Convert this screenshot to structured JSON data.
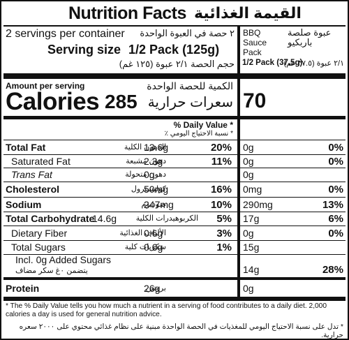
{
  "header": {
    "title_en": "Nutrition Facts",
    "title_ar": "القيمة الغذائية",
    "servings_en": "2 servings per container",
    "servings_ar": "٢ حصة في العبوة الواحدة",
    "serving_size_label": "Serving size",
    "serving_size_value": "1/2 Pack (125g)",
    "serving_size_ar": "حجم الحصة ٢/١ عبوة (١٢٥ غم)",
    "extra_col_title_en": "BBQ Sauce Pack",
    "extra_col_title_ar": "عبوة صلصة باربكيو",
    "extra_serving_en": "1/2 Pack (37.5g)",
    "extra_serving_ar": "٢/١ عبوة (٣٧.٥ غم)"
  },
  "calories": {
    "amount_label_en": "Amount per serving",
    "amount_label_ar": "الكمية للحصة الواحدة",
    "label_en": "Calories",
    "label_ar": "سعرات حرارية",
    "value": "285",
    "extra_value": "70"
  },
  "dv_header": {
    "en": "% Daily Value *",
    "ar": "* نسبة الاحتياج اليومي ٪"
  },
  "rows": [
    {
      "en": "Total Fat",
      "ar": "الدهون الكلية",
      "amount": "13.6g",
      "dv": "20%",
      "x_amount": "0g",
      "x_dv": "0%",
      "bold": true
    },
    {
      "en": "Saturated Fat",
      "ar": "دهون مشبعة",
      "amount": "2.3g",
      "dv": "11%",
      "x_amount": "0g",
      "x_dv": "0%",
      "bold": false
    },
    {
      "en": "Trans Fat",
      "ar": "دهون متحولة",
      "amount": "0g",
      "dv": "",
      "x_amount": "0g",
      "x_dv": "",
      "bold": false
    },
    {
      "en": "Cholesterol",
      "ar": "كوليسترول",
      "amount": "50mg",
      "dv": "16%",
      "x_amount": "0mg",
      "x_dv": "0%",
      "bold": true
    },
    {
      "en": "Sodium",
      "ar": "صوديوم",
      "amount": "247mg",
      "dv": "10%",
      "x_amount": "290mg",
      "x_dv": "13%",
      "bold": true
    },
    {
      "en": "Total Carbohydrate",
      "ar": "الكربوهيدرات الكلية",
      "amount": "14.6g",
      "dv": "5%",
      "x_amount": "17g",
      "x_dv": "6%",
      "bold": true
    },
    {
      "en": "Dietary Fiber",
      "ar": "الألياف الغذائية",
      "amount": "0.6g",
      "dv": "3%",
      "x_amount": "0g",
      "x_dv": "0%",
      "bold": false
    },
    {
      "en": "Total Sugars",
      "ar": "سكريات كلية",
      "amount": "0.6g",
      "dv": "1%",
      "x_amount": "15g",
      "x_dv": "",
      "bold": false
    },
    {
      "en": "Incl. 0g Added Sugars",
      "ar": "يتضمن ٠غ سكر مضاف",
      "amount": "",
      "dv": "",
      "x_amount": "14g",
      "x_dv": "28%",
      "bold": false
    },
    {
      "en": "Protein",
      "ar": "بروتين",
      "amount": "26g",
      "dv": "",
      "x_amount": "0g",
      "x_dv": "",
      "bold": true
    }
  ],
  "footnote": {
    "en": "* The % Daily Value tells you how much a nutrient in a serving of food contributes to a daily diet. 2,000 calories a day is used for general nutrition advice.",
    "ar": "* تدل على نسبة الاحتياج اليومي للمغذيات في الحصة الواحدة مبنية على نظام غذائي محتوي على ٢٠٠٠ سعره حرارية."
  }
}
